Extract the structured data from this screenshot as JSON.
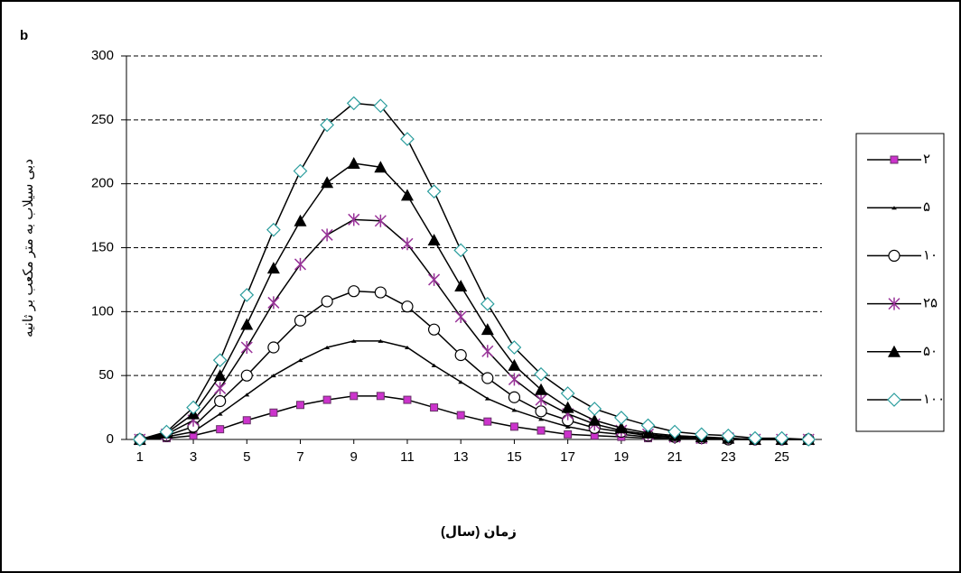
{
  "chart_data": {
    "type": "line",
    "panel_label": "b",
    "x_label": "زمان (سال)",
    "y_label": "دبی سیلاب به متر مکعب بر ثانیه",
    "x": [
      1,
      2,
      3,
      4,
      5,
      6,
      7,
      8,
      9,
      10,
      11,
      12,
      13,
      14,
      15,
      16,
      17,
      18,
      19,
      20,
      21,
      22,
      23,
      24,
      25,
      26
    ],
    "xlim": [
      0.5,
      26.5
    ],
    "xticks": [
      1,
      3,
      5,
      7,
      9,
      11,
      13,
      15,
      17,
      19,
      21,
      23,
      25
    ],
    "ylim": [
      0,
      300
    ],
    "yticks": [
      0,
      50,
      100,
      150,
      200,
      250,
      300
    ],
    "grid": true,
    "legend": "right",
    "series": [
      {
        "name": "۲",
        "color": "#cc33cc",
        "marker": "square",
        "values": [
          0,
          1,
          3,
          8,
          15,
          21,
          27,
          31,
          34,
          34,
          31,
          25,
          19,
          14,
          10,
          7,
          4,
          3,
          2,
          1,
          1,
          0,
          0,
          0,
          0,
          0
        ]
      },
      {
        "name": "۵",
        "color": "#000000",
        "marker": "dash",
        "values": [
          0,
          2,
          6,
          20,
          35,
          50,
          62,
          72,
          77,
          77,
          72,
          58,
          45,
          32,
          23,
          16,
          10,
          6,
          4,
          2,
          1,
          1,
          0,
          0,
          0,
          0
        ]
      },
      {
        "name": "۱۰",
        "color": "#000000",
        "marker": "circle",
        "values": [
          0,
          3,
          10,
          30,
          50,
          72,
          93,
          108,
          116,
          115,
          104,
          86,
          66,
          48,
          33,
          22,
          15,
          9,
          6,
          3,
          2,
          1,
          0,
          0,
          0,
          0
        ]
      },
      {
        "name": "۲۵",
        "color": "#993399",
        "marker": "star",
        "values": [
          0,
          4,
          15,
          40,
          72,
          107,
          137,
          160,
          172,
          171,
          153,
          125,
          96,
          69,
          47,
          31,
          20,
          12,
          7,
          4,
          2,
          1,
          1,
          0,
          0,
          0
        ]
      },
      {
        "name": "۵۰",
        "color": "#000000",
        "marker": "triangle",
        "values": [
          0,
          5,
          20,
          50,
          90,
          134,
          171,
          201,
          216,
          213,
          191,
          156,
          120,
          86,
          58,
          39,
          25,
          15,
          9,
          5,
          3,
          2,
          1,
          0,
          0,
          0
        ]
      },
      {
        "name": "۱۰۰",
        "color": "#2a9d9d",
        "marker": "diamond",
        "values": [
          0,
          6,
          25,
          62,
          113,
          164,
          210,
          246,
          263,
          261,
          235,
          194,
          148,
          106,
          72,
          51,
          36,
          24,
          17,
          11,
          6,
          4,
          3,
          1,
          1,
          0
        ]
      }
    ]
  }
}
